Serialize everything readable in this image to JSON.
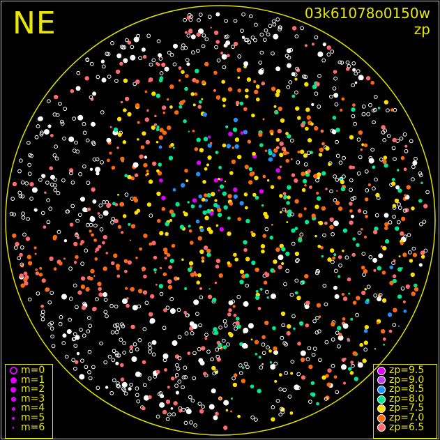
{
  "header": {
    "direction_label": "NE",
    "frame_id": "03k61078o0150w",
    "plot_type_label": "zp"
  },
  "chart_data": {
    "type": "scatter",
    "title": "03k61078o0150w",
    "subtitle": "zp",
    "grid": false,
    "horizon_circle": true,
    "horizon_color": "#e0e000",
    "unmatched_color": "#ffffff",
    "size_legend": {
      "placement": "bottom-left",
      "entries": [
        {
          "label": "m=0",
          "m": 0
        },
        {
          "label": "m=1",
          "m": 1
        },
        {
          "label": "m=2",
          "m": 2
        },
        {
          "label": "m=3",
          "m": 3
        },
        {
          "label": "m=4",
          "m": 4
        },
        {
          "label": "m=5",
          "m": 5
        },
        {
          "label": "m=6",
          "m": 6
        }
      ]
    },
    "color_legend": {
      "placement": "bottom-right",
      "entries": [
        {
          "label": "zp=9.5",
          "zp": 9.5,
          "color": "#e000ff"
        },
        {
          "label": "zp=9.0",
          "zp": 9.0,
          "color": "#c040f0"
        },
        {
          "label": "zp=8.5",
          "zp": 8.5,
          "color": "#2090ff"
        },
        {
          "label": "zp=8.0",
          "zp": 8.0,
          "color": "#00e890"
        },
        {
          "label": "zp=7.5",
          "zp": 7.5,
          "color": "#ffe000"
        },
        {
          "label": "zp=7.0",
          "zp": 7.0,
          "color": "#ff6a10"
        },
        {
          "label": "zp=6.5",
          "zp": 6.5,
          "color": "#ff6a6a"
        }
      ]
    }
  }
}
